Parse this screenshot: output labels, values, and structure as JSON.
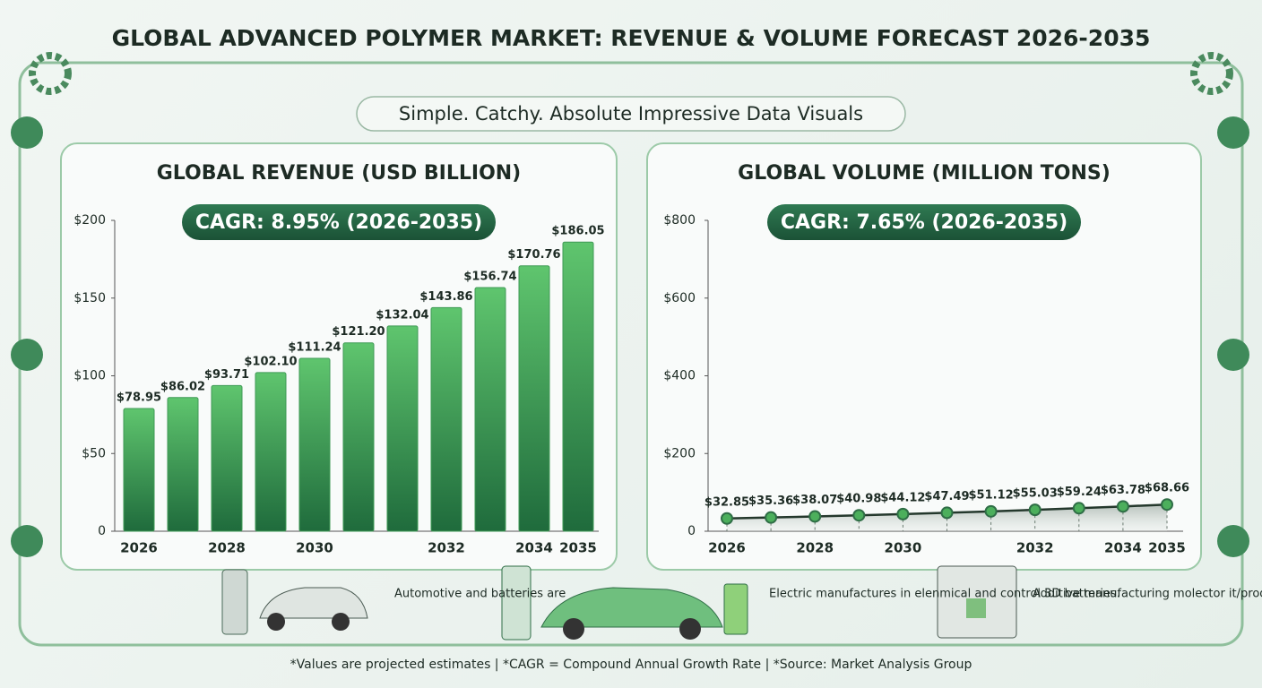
{
  "title": "GLOBAL ADVANCED POLYMER MARKET: REVENUE & VOLUME FORECAST 2026-2035",
  "subtitle": "Simple. Catchy. Absolute Impressive Data Visuals",
  "captions": [
    "Automotive and batteries are",
    "Electric manufactures in elenmical and control 3D batteries.",
    "Additive manufacturing molector it/production units."
  ],
  "footnote": "*Values are projected estimates | *CAGR = Compound Annual Growth Rate | *Source: Market Analysis Group",
  "chart_data": [
    {
      "type": "bar",
      "title": "GLOBAL REVENUE (USD BILLION)",
      "annotation": "CAGR: 8.95% (2026-2035)",
      "categories": [
        "2026",
        null,
        "2028",
        null,
        "2030",
        null,
        null,
        "2032",
        null,
        "2034",
        "2035"
      ],
      "values": [
        78.95,
        86.02,
        93.71,
        102.1,
        111.24,
        121.2,
        132.04,
        143.86,
        156.74,
        170.76,
        186.05
      ],
      "value_labels": [
        "$78.95",
        "$86.02",
        "$93.71",
        "$102.10",
        "$111.24",
        "$121.20",
        "$132.04",
        "$143.86",
        "$156.74",
        "$170.76",
        "$186.05"
      ],
      "color": "#3f9a55",
      "ylim": [
        0,
        200
      ],
      "yticks": [
        {
          "value": 0,
          "label": "0"
        },
        {
          "value": 50,
          "label": "$50"
        },
        {
          "value": 100,
          "label": "$100"
        },
        {
          "value": 150,
          "label": "$150"
        },
        {
          "value": 200,
          "label": "$200"
        }
      ]
    },
    {
      "type": "line",
      "title": "GLOBAL VOLUME (MILLION TONS)",
      "annotation": "CAGR: 7.65% (2026-2035)",
      "categories": [
        "2026",
        null,
        "2028",
        null,
        "2030",
        null,
        null,
        "2032",
        null,
        "2034",
        "2035"
      ],
      "values": [
        32.85,
        35.36,
        38.07,
        40.98,
        44.12,
        47.49,
        51.12,
        55.03,
        59.24,
        63.78,
        68.66
      ],
      "value_labels": [
        "$32.85",
        "$35.36",
        "$38.07",
        "$40.98",
        "$44.12",
        "$47.49",
        "$51.12",
        "$55.03",
        "$59.24",
        "$63.78",
        "$68.66"
      ],
      "color": "#2f6e46",
      "ylim": [
        0,
        800
      ],
      "yticks": [
        {
          "value": 0,
          "label": "0"
        },
        {
          "value": 200,
          "label": "$200"
        },
        {
          "value": 400,
          "label": "$400"
        },
        {
          "value": 600,
          "label": "$600"
        },
        {
          "value": 800,
          "label": "$800"
        }
      ]
    }
  ]
}
